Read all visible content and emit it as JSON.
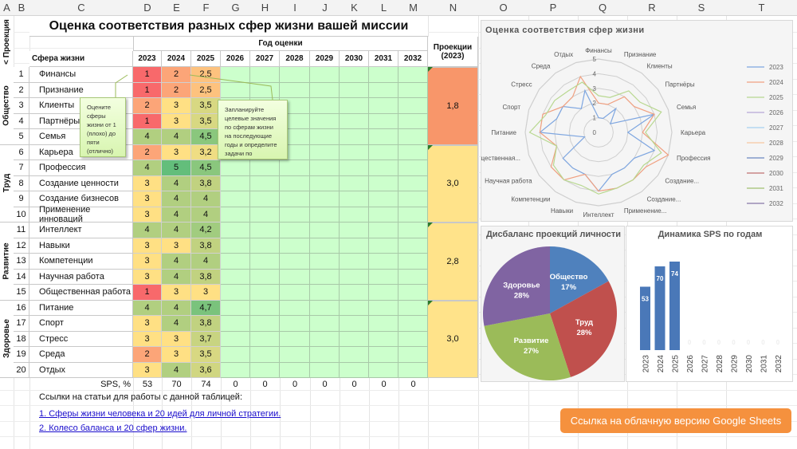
{
  "columns": [
    "A",
    "B",
    "C",
    "D",
    "E",
    "F",
    "G",
    "H",
    "I",
    "J",
    "K",
    "L",
    "M",
    "N",
    "O",
    "P",
    "Q",
    "R",
    "S",
    "T"
  ],
  "title": "Оценка соответствия разных сфер жизни вашей миссии",
  "projection_side_label": "< Проекция",
  "year_group_label": "Год оценки",
  "sphere_header": "Сфера жизни",
  "projections_header": "Проекции (2023)",
  "years": [
    "2023",
    "2024",
    "2025",
    "2026",
    "2027",
    "2028",
    "2029",
    "2030",
    "2031",
    "2032"
  ],
  "groups": [
    {
      "name": "Общество",
      "projection": "1,8",
      "color": "#f8966a"
    },
    {
      "name": "Труд",
      "projection": "3,0",
      "color": "#ffe38a"
    },
    {
      "name": "Развитие",
      "projection": "2,8",
      "color": "#ffe38a"
    },
    {
      "name": "Здоровье",
      "projection": "3,0",
      "color": "#ffe38a"
    }
  ],
  "rows": [
    {
      "n": "1",
      "name": "Финансы",
      "v": [
        "1",
        "2",
        "2,5"
      ]
    },
    {
      "n": "2",
      "name": "Признание",
      "v": [
        "1",
        "2",
        "2,5"
      ]
    },
    {
      "n": "3",
      "name": "Клиенты",
      "v": [
        "2",
        "3",
        "3,5"
      ]
    },
    {
      "n": "4",
      "name": "Партнёры",
      "v": [
        "1",
        "3",
        "3,5"
      ]
    },
    {
      "n": "5",
      "name": "Семья",
      "v": [
        "4",
        "4",
        "4,5"
      ]
    },
    {
      "n": "6",
      "name": "Карьера",
      "v": [
        "2",
        "3",
        "3,2"
      ]
    },
    {
      "n": "7",
      "name": "Профессия",
      "v": [
        "4",
        "5",
        "4,5"
      ]
    },
    {
      "n": "8",
      "name": "Создание ценности",
      "v": [
        "3",
        "4",
        "3,8"
      ]
    },
    {
      "n": "9",
      "name": "Создание бизнесов",
      "v": [
        "3",
        "4",
        "4"
      ]
    },
    {
      "n": "10",
      "name": "Применение инноваций",
      "v": [
        "3",
        "4",
        "4"
      ]
    },
    {
      "n": "11",
      "name": "Интеллект",
      "v": [
        "4",
        "4",
        "4,2"
      ]
    },
    {
      "n": "12",
      "name": "Навыки",
      "v": [
        "3",
        "3",
        "3,8"
      ]
    },
    {
      "n": "13",
      "name": "Компетенции",
      "v": [
        "3",
        "4",
        "4"
      ]
    },
    {
      "n": "14",
      "name": "Научная работа",
      "v": [
        "3",
        "4",
        "3,8"
      ]
    },
    {
      "n": "15",
      "name": "Общественная работа",
      "v": [
        "1",
        "3",
        "3"
      ]
    },
    {
      "n": "16",
      "name": "Питание",
      "v": [
        "4",
        "4",
        "4,7"
      ]
    },
    {
      "n": "17",
      "name": "Спорт",
      "v": [
        "3",
        "4",
        "3,8"
      ]
    },
    {
      "n": "18",
      "name": "Стресс",
      "v": [
        "3",
        "3",
        "3,7"
      ]
    },
    {
      "n": "19",
      "name": "Среда",
      "v": [
        "2",
        "3",
        "3,5"
      ]
    },
    {
      "n": "20",
      "name": "Отдых",
      "v": [
        "3",
        "4",
        "3,6"
      ]
    }
  ],
  "sps_label": "SPS, %",
  "sps": [
    "53",
    "70",
    "74",
    "0",
    "0",
    "0",
    "0",
    "0",
    "0",
    "0"
  ],
  "notes": {
    "rate": "Оцените сферы жизни от 1 (плохо) до пяти (отлично)",
    "plan": "Запланируйте целевые значения по сферам жизни на последующие годы и определите задачи по"
  },
  "links_heading": "Ссылки на статьи для работы с данной таблицей:",
  "links": [
    "1. Сферы жизни человека и 20 идей для личной стратегии.",
    "2. Колесо баланса и 20 сфер жизни."
  ],
  "cloud_button": "Ссылка на облачную версию Google Sheets",
  "colors": {
    "bad": "#f8696b",
    "mid": "#ffe084",
    "good": "#63be7b",
    "empty": "#ccffcc",
    "button": "#f5913e"
  },
  "chart_data": [
    {
      "type": "radar",
      "title": "Оценка соответствия сфер жизни",
      "axes": [
        "Финансы",
        "Признание",
        "Клиенты",
        "Партнёры",
        "Семья",
        "Карьера",
        "Профессия",
        "Создание...",
        "Создание...",
        "Применение...",
        "Интеллект",
        "Навыки",
        "Компетенции",
        "Научная работа",
        "Общественная...",
        "Питание",
        "Спорт",
        "Стресс",
        "Среда",
        "Отдых"
      ],
      "ticks": [
        "0",
        "1",
        "2",
        "3",
        "4",
        "5"
      ],
      "range": [
        0,
        5
      ],
      "series": [
        {
          "name": "2023",
          "color": "#7ea6e0",
          "values": [
            1,
            1,
            2,
            1,
            4,
            2,
            4,
            3,
            3,
            3,
            4,
            3,
            3,
            3,
            1,
            4,
            3,
            3,
            2,
            3
          ]
        },
        {
          "name": "2024",
          "color": "#f0a080",
          "values": [
            2,
            2,
            3,
            3,
            4,
            3,
            5,
            4,
            4,
            4,
            4,
            3,
            4,
            4,
            3,
            4,
            4,
            3,
            3,
            4
          ]
        },
        {
          "name": "2025",
          "color": "#b8d890",
          "values": [
            2.5,
            2.5,
            3.5,
            3.5,
            4.5,
            3.2,
            4.5,
            3.8,
            4,
            4,
            4.2,
            3.8,
            4,
            3.8,
            3,
            4.7,
            3.8,
            3.7,
            3.5,
            3.6
          ]
        },
        {
          "name": "2026",
          "color": "#b8a8d8",
          "values": []
        },
        {
          "name": "2027",
          "color": "#a8d0f0",
          "values": []
        },
        {
          "name": "2028",
          "color": "#f8c8a0",
          "values": []
        },
        {
          "name": "2029",
          "color": "#6a88c0",
          "values": []
        },
        {
          "name": "2030",
          "color": "#c07070",
          "values": []
        },
        {
          "name": "2031",
          "color": "#a0c070",
          "values": []
        },
        {
          "name": "2032",
          "color": "#8878a8",
          "values": []
        }
      ],
      "legend": "right"
    },
    {
      "type": "pie",
      "title": "Дисбаланс проекций личности",
      "slices": [
        {
          "label": "Общество",
          "value": 17,
          "text": "17%",
          "color": "#4f81bd"
        },
        {
          "label": "Труд",
          "value": 28,
          "text": "28%",
          "color": "#c0504d"
        },
        {
          "label": "Развитие",
          "value": 27,
          "text": "27%",
          "color": "#9bbb59"
        },
        {
          "label": "Здоровье",
          "value": 28,
          "text": "28%",
          "color": "#8064a2"
        }
      ]
    },
    {
      "type": "bar",
      "title": "Динамика SPS по годам",
      "categories": [
        "2023",
        "2024",
        "2025",
        "2026",
        "2027",
        "2028",
        "2029",
        "2030",
        "2031",
        "2032"
      ],
      "values": [
        53,
        70,
        74,
        0,
        0,
        0,
        0,
        0,
        0,
        0
      ],
      "labels": [
        "53",
        "70",
        "74",
        "0",
        "0",
        "0",
        "0",
        "0",
        "0",
        "0"
      ],
      "color": "#4a78b8"
    }
  ]
}
